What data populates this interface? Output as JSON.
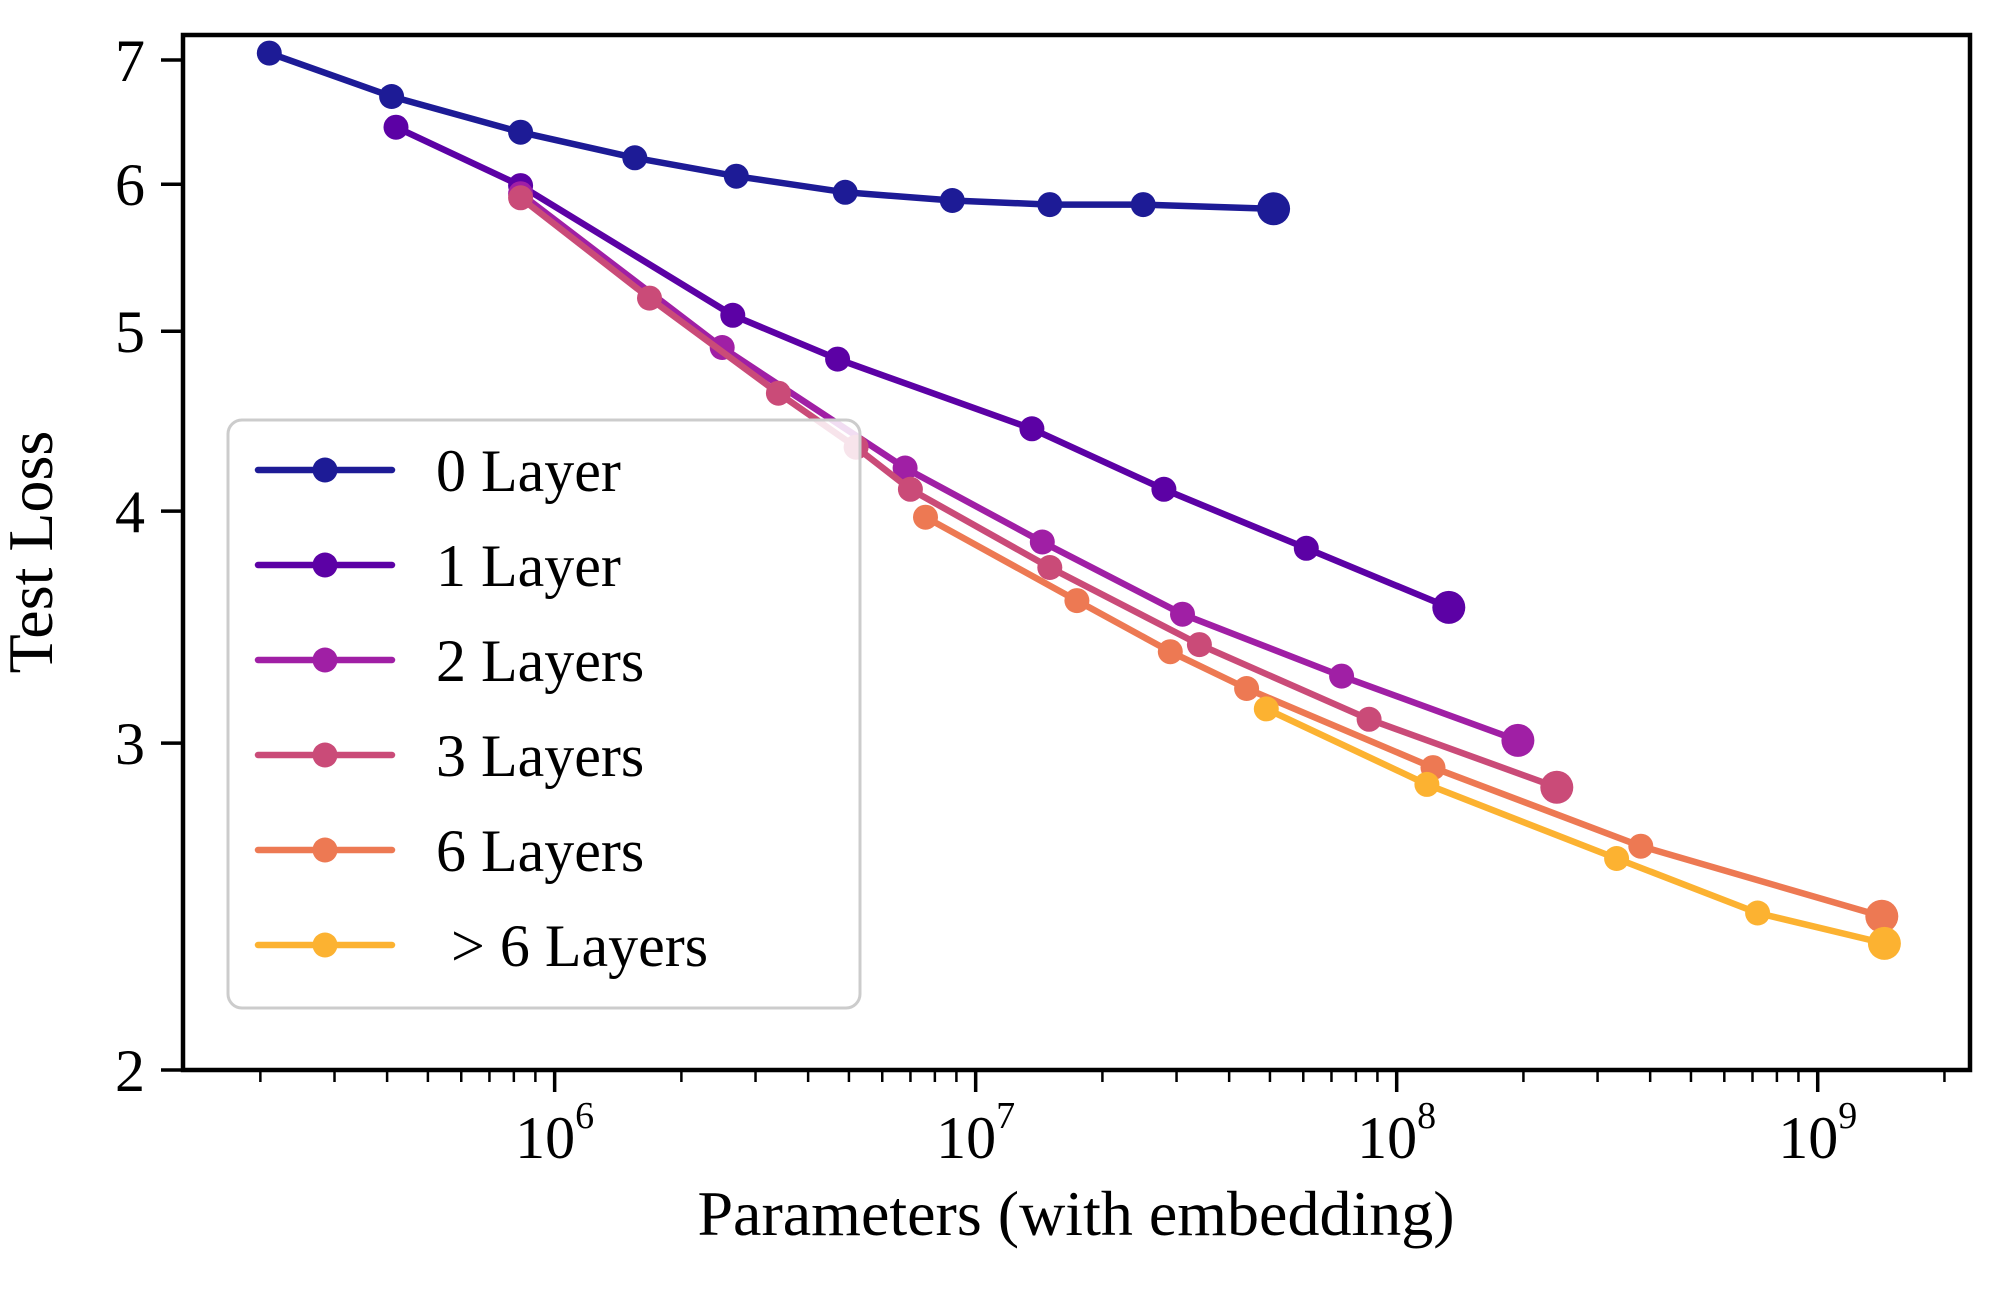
{
  "chart_data": {
    "type": "line",
    "title": "",
    "xlabel": "Parameters (with embedding)",
    "ylabel": "Test Loss",
    "x_scale": "log",
    "y_scale": "log",
    "xlim": [
      131000,
      2300000000
    ],
    "ylim": [
      2.0,
      7.22
    ],
    "grid": false,
    "legend_position": "center-left",
    "x_ticks": [
      {
        "value": 1000000,
        "base": "10",
        "exp": "6"
      },
      {
        "value": 10000000,
        "base": "10",
        "exp": "7"
      },
      {
        "value": 100000000,
        "base": "10",
        "exp": "8"
      },
      {
        "value": 1000000000,
        "base": "10",
        "exp": "9"
      }
    ],
    "y_ticks": [
      {
        "value": 2,
        "label": "2"
      },
      {
        "value": 3,
        "label": "3"
      },
      {
        "value": 4,
        "label": "4"
      },
      {
        "value": 5,
        "label": "5"
      },
      {
        "value": 6,
        "label": "6"
      },
      {
        "value": 7,
        "label": "7"
      }
    ],
    "series": [
      {
        "label": "0 Layer",
        "color": "#1d1b96",
        "points": [
          [
            210000,
            7.06
          ],
          [
            410000,
            6.69
          ],
          [
            830000,
            6.4
          ],
          [
            1550000,
            6.2
          ],
          [
            2700000,
            6.06
          ],
          [
            4900000,
            5.94
          ],
          [
            8800000,
            5.88
          ],
          [
            15000000,
            5.85
          ],
          [
            25000000,
            5.85
          ],
          [
            51000000,
            5.82
          ]
        ]
      },
      {
        "label": "1 Layer",
        "color": "#5c01a5",
        "points": [
          [
            420000,
            6.44
          ],
          [
            830000,
            5.99
          ],
          [
            2650000,
            5.1
          ],
          [
            4700000,
            4.83
          ],
          [
            13600000,
            4.43
          ],
          [
            28000000,
            4.11
          ],
          [
            61000000,
            3.82
          ],
          [
            133000000,
            3.55
          ]
        ]
      },
      {
        "label": "2 Layers",
        "color": "#a01fa5",
        "points": [
          [
            830000,
            5.93
          ],
          [
            2500000,
            4.9
          ],
          [
            6800000,
            4.22
          ],
          [
            14400000,
            3.85
          ],
          [
            31000000,
            3.52
          ],
          [
            74000000,
            3.26
          ],
          [
            194000000,
            3.01
          ]
        ]
      },
      {
        "label": "3 Layers",
        "color": "#ca4b78",
        "points": [
          [
            830000,
            5.9
          ],
          [
            1680000,
            5.21
          ],
          [
            3400000,
            4.63
          ],
          [
            5200000,
            4.33
          ],
          [
            7000000,
            4.11
          ],
          [
            15000000,
            3.73
          ],
          [
            34000000,
            3.39
          ],
          [
            86000000,
            3.09
          ],
          [
            240000000,
            2.84
          ]
        ]
      },
      {
        "label": "6 Layers",
        "color": "#ed7953",
        "points": [
          [
            7600000,
            3.97
          ],
          [
            17400000,
            3.58
          ],
          [
            29000000,
            3.36
          ],
          [
            44000000,
            3.21
          ],
          [
            122000000,
            2.91
          ],
          [
            380000000,
            2.64
          ],
          [
            1420000000,
            2.42
          ]
        ]
      },
      {
        "label": " > 6 Layers",
        "color": "#fcb231",
        "points": [
          [
            49000000,
            3.13
          ],
          [
            118000000,
            2.85
          ],
          [
            333000000,
            2.6
          ],
          [
            720000000,
            2.43
          ],
          [
            1440000000,
            2.34
          ]
        ]
      }
    ]
  }
}
